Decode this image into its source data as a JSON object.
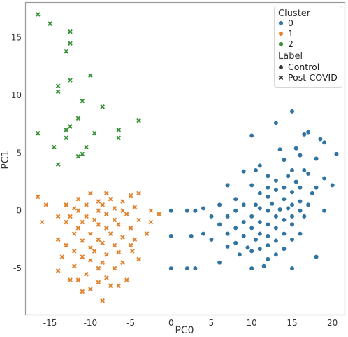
{
  "chart_data": {
    "type": "scatter",
    "title": "",
    "xlabel": "PC0",
    "ylabel": "PC1",
    "xlim": [
      -18,
      21.5
    ],
    "ylim": [
      -9,
      18
    ],
    "xticks": [
      -15,
      -10,
      -5,
      0,
      5,
      10,
      15,
      20
    ],
    "yticks": [
      -5,
      0,
      5,
      10,
      15
    ],
    "grid": false,
    "legend": {
      "placement": "top-right",
      "hue_title": "Cluster",
      "style_title": "Label",
      "hue_entries": [
        {
          "label": "0",
          "color": "#3274a1"
        },
        {
          "label": "1",
          "color": "#e1812c"
        },
        {
          "label": "2",
          "color": "#3a923a"
        }
      ],
      "style_entries": [
        {
          "label": "Control",
          "marker": "circle"
        },
        {
          "label": "Post-COVID",
          "marker": "x"
        }
      ]
    },
    "series": [
      {
        "name": "0",
        "cluster": "0",
        "label": "Control",
        "marker": "circle",
        "color": "#3274a1",
        "points": [
          [
            15,
            8.6
          ],
          [
            13,
            7.6
          ],
          [
            17,
            6.8
          ],
          [
            16.5,
            6.6
          ],
          [
            10,
            6.5
          ],
          [
            18.5,
            6.2
          ],
          [
            19,
            5.9
          ],
          [
            15.5,
            5.4
          ],
          [
            13.5,
            5.3
          ],
          [
            20.5,
            4.9
          ],
          [
            16,
            4.8
          ],
          [
            18,
            4.5
          ],
          [
            14,
            4.4
          ],
          [
            11,
            3.9
          ],
          [
            10.5,
            3.5
          ],
          [
            15,
            3.5
          ],
          [
            16.5,
            3.5
          ],
          [
            17,
            3.2
          ],
          [
            9,
            3.4
          ],
          [
            12,
            3.0
          ],
          [
            14.5,
            3.0
          ],
          [
            19,
            2.8
          ],
          [
            13,
            2.6
          ],
          [
            15.5,
            2.5
          ],
          [
            7,
            2.2
          ],
          [
            10,
            2.2
          ],
          [
            12,
            2.0
          ],
          [
            14,
            2.0
          ],
          [
            16,
            2.0
          ],
          [
            18,
            2.0
          ],
          [
            20,
            2.2
          ],
          [
            13,
            1.8
          ],
          [
            11,
            1.5
          ],
          [
            15,
            1.6
          ],
          [
            17.5,
            1.5
          ],
          [
            12,
            1.2
          ],
          [
            8,
            1.0
          ],
          [
            14,
            1.0
          ],
          [
            16,
            0.8
          ],
          [
            6,
            0.5
          ],
          [
            9,
            0.5
          ],
          [
            10.5,
            0.5
          ],
          [
            12.5,
            0.6
          ],
          [
            15,
            0.5
          ],
          [
            17,
            0.5
          ],
          [
            4,
            0.2
          ],
          [
            11,
            0.2
          ],
          [
            13.5,
            0.1
          ],
          [
            14.5,
            0.2
          ],
          [
            12,
            0
          ],
          [
            16,
            0
          ],
          [
            3,
            0
          ],
          [
            2,
            0
          ],
          [
            19,
            0
          ],
          [
            8,
            0
          ],
          [
            5,
            -0.5
          ],
          [
            7,
            -0.5
          ],
          [
            10,
            -0.5
          ],
          [
            13,
            -0.5
          ],
          [
            15,
            -0.5
          ],
          [
            16.5,
            -0.5
          ],
          [
            9,
            -1
          ],
          [
            11,
            -1
          ],
          [
            14,
            -0.8
          ],
          [
            6,
            -1.2
          ],
          [
            12,
            -1.2
          ],
          [
            15,
            -1.2
          ],
          [
            8,
            -1.5
          ],
          [
            10,
            -1.5
          ],
          [
            13,
            -1.5
          ],
          [
            4,
            -2
          ],
          [
            11,
            -2
          ],
          [
            14,
            -2
          ],
          [
            2.5,
            -2.2
          ],
          [
            7,
            -2
          ],
          [
            9,
            -2.2
          ],
          [
            12,
            -2.2
          ],
          [
            16,
            -2
          ],
          [
            5,
            -2.5
          ],
          [
            10.5,
            -2.5
          ],
          [
            13,
            -2.6
          ],
          [
            15,
            -2.5
          ],
          [
            8,
            -2.8
          ],
          [
            12,
            -3
          ],
          [
            7,
            -3.1
          ],
          [
            9.5,
            -3.2
          ],
          [
            11,
            -3.3
          ],
          [
            14,
            -3.3
          ],
          [
            10,
            -3.5
          ],
          [
            8.5,
            -3.8
          ],
          [
            13,
            -3.8
          ],
          [
            12,
            -4.2
          ],
          [
            2,
            -5
          ],
          [
            3,
            -5
          ],
          [
            15,
            -5
          ],
          [
            10,
            -5
          ],
          [
            11.5,
            -4.8
          ],
          [
            6,
            -4.5
          ],
          [
            18,
            -4
          ],
          [
            0,
            -2.2
          ],
          [
            0,
            -5
          ],
          [
            0,
            0
          ]
        ]
      },
      {
        "name": "1",
        "cluster": "1",
        "label": "Post-COVID",
        "marker": "x",
        "color": "#e1812c",
        "points": [
          [
            -4,
            1.5
          ],
          [
            -8,
            1.5
          ],
          [
            -16.5,
            1.2
          ],
          [
            -10,
            1.5
          ],
          [
            -5,
            1.3
          ],
          [
            -11.5,
            1
          ],
          [
            -7.5,
            1
          ],
          [
            -9,
            0.8
          ],
          [
            -6,
            0.8
          ],
          [
            -13,
            0.5
          ],
          [
            -10.5,
            0.5
          ],
          [
            -8.5,
            0.5
          ],
          [
            -4.5,
            0.3
          ],
          [
            -15.5,
            0.5
          ],
          [
            -11.5,
            0
          ],
          [
            -12,
            0.2
          ],
          [
            -7,
            0.2
          ],
          [
            -9,
            0
          ],
          [
            -6,
            0
          ],
          [
            -2.5,
            0
          ],
          [
            -14,
            -0.5
          ],
          [
            -10.5,
            -0.5
          ],
          [
            -8,
            -0.3
          ],
          [
            -5.5,
            -0.3
          ],
          [
            -12.5,
            -0.5
          ],
          [
            -9.5,
            -0.8
          ],
          [
            -7,
            -0.8
          ],
          [
            -11,
            -1
          ],
          [
            -4,
            -0.8
          ],
          [
            -16,
            -1
          ],
          [
            -13,
            -1
          ],
          [
            -9,
            -1.2
          ],
          [
            -6.5,
            -1.2
          ],
          [
            -11.5,
            -1.5
          ],
          [
            -8,
            -1.5
          ],
          [
            -5,
            -1.5
          ],
          [
            -12,
            -2
          ],
          [
            -10,
            -2
          ],
          [
            -7.5,
            -2
          ],
          [
            -14,
            -2.5
          ],
          [
            -9,
            -2.5
          ],
          [
            -6,
            -2.3
          ],
          [
            -11,
            -2.6
          ],
          [
            -8.5,
            -2.8
          ],
          [
            -4.5,
            -2.5
          ],
          [
            -13,
            -3
          ],
          [
            -10,
            -3.2
          ],
          [
            -7,
            -3
          ],
          [
            -5,
            -3
          ],
          [
            -12,
            -3.5
          ],
          [
            -9.5,
            -3.5
          ],
          [
            -8,
            -3.8
          ],
          [
            -6.5,
            -3.6
          ],
          [
            -11,
            -4
          ],
          [
            -13.5,
            -4
          ],
          [
            -10,
            -4.3
          ],
          [
            -8.5,
            -4.5
          ],
          [
            -4,
            -4.2
          ],
          [
            -12,
            -4.8
          ],
          [
            -9,
            -5
          ],
          [
            -7,
            -5
          ],
          [
            -14,
            -5.2
          ],
          [
            -10.5,
            -5.5
          ],
          [
            -11.5,
            -6
          ],
          [
            -9,
            -6.2
          ],
          [
            -7.5,
            -6.5
          ],
          [
            -10,
            -6.8
          ],
          [
            -11,
            -7
          ],
          [
            -8.5,
            -7.8
          ],
          [
            -2.5,
            -1
          ],
          [
            -1.5,
            -0.3
          ],
          [
            -3,
            -2
          ],
          [
            -4.8,
            -3.5
          ],
          [
            -6,
            -4.5
          ],
          [
            -8,
            -5.8
          ],
          [
            -12.5,
            -6
          ],
          [
            -6.5,
            -6.5
          ],
          [
            -5.5,
            -6
          ]
        ]
      },
      {
        "name": "2",
        "cluster": "2",
        "label": "Post-COVID",
        "marker": "x",
        "color": "#3a923a",
        "points": [
          [
            -16.5,
            17
          ],
          [
            -15,
            16.2
          ],
          [
            -12.5,
            15.5
          ],
          [
            -12.5,
            14.5
          ],
          [
            -13,
            13.8
          ],
          [
            -10,
            11.7
          ],
          [
            -12.5,
            11.3
          ],
          [
            -14,
            10.8
          ],
          [
            -14,
            10.3
          ],
          [
            -11,
            9.5
          ],
          [
            -8.5,
            9
          ],
          [
            -11.5,
            8
          ],
          [
            -4,
            7.8
          ],
          [
            -12.5,
            7.3
          ],
          [
            -13,
            7
          ],
          [
            -9.5,
            6.7
          ],
          [
            -6.5,
            7
          ],
          [
            -16.5,
            6.7
          ],
          [
            -13,
            6.3
          ],
          [
            -6.5,
            6.3
          ],
          [
            -14.5,
            5.5
          ],
          [
            -10.5,
            5.5
          ],
          [
            -11,
            4.9
          ],
          [
            -11.5,
            4.7
          ],
          [
            -14,
            4
          ]
        ]
      }
    ]
  }
}
